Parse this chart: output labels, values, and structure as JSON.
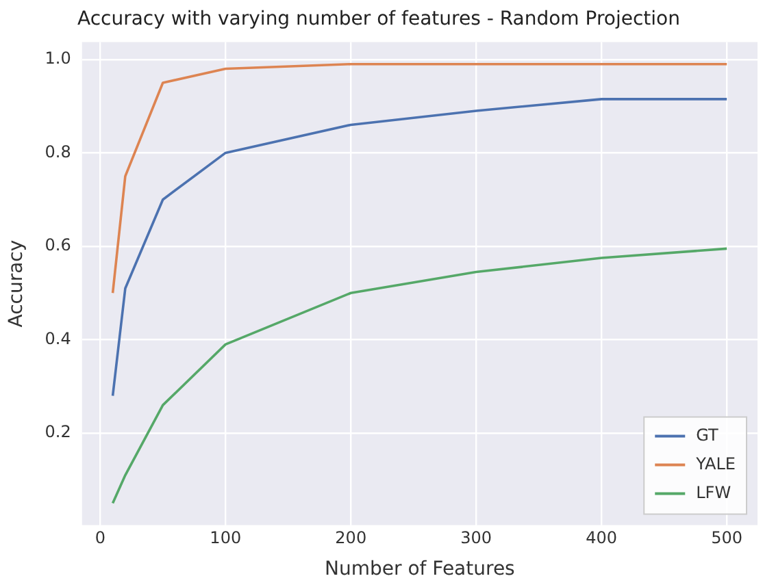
{
  "chart_data": {
    "type": "line",
    "title": "Accuracy with varying number of features - Random Projection",
    "xlabel": "Number of Features",
    "ylabel": "Accuracy",
    "x": [
      10,
      20,
      50,
      100,
      200,
      300,
      400,
      500
    ],
    "series": [
      {
        "name": "GT",
        "color": "#4c72b0",
        "values": [
          0.28,
          0.51,
          0.7,
          0.8,
          0.86,
          0.89,
          0.915,
          0.915
        ]
      },
      {
        "name": "YALE",
        "color": "#dd8452",
        "values": [
          0.5,
          0.75,
          0.95,
          0.98,
          0.99,
          0.99,
          0.99,
          0.99
        ]
      },
      {
        "name": "LFW",
        "color": "#55a868",
        "values": [
          0.05,
          0.11,
          0.26,
          0.39,
          0.5,
          0.545,
          0.575,
          0.595
        ]
      }
    ],
    "xlim": [
      -14.5,
      524.5
    ],
    "ylim": [
      0.003,
      1.037
    ],
    "xticks": [
      0,
      100,
      200,
      300,
      400,
      500
    ],
    "yticks": [
      {
        "value": 0.2,
        "label": "0.2"
      },
      {
        "value": 0.4,
        "label": "0.4"
      },
      {
        "value": 0.6,
        "label": "0.6"
      },
      {
        "value": 0.8,
        "label": "0.8"
      },
      {
        "value": 1.0,
        "label": "1.0"
      }
    ],
    "grid": true,
    "legend": "bottom right",
    "marker": "none",
    "line_style": "solid"
  }
}
